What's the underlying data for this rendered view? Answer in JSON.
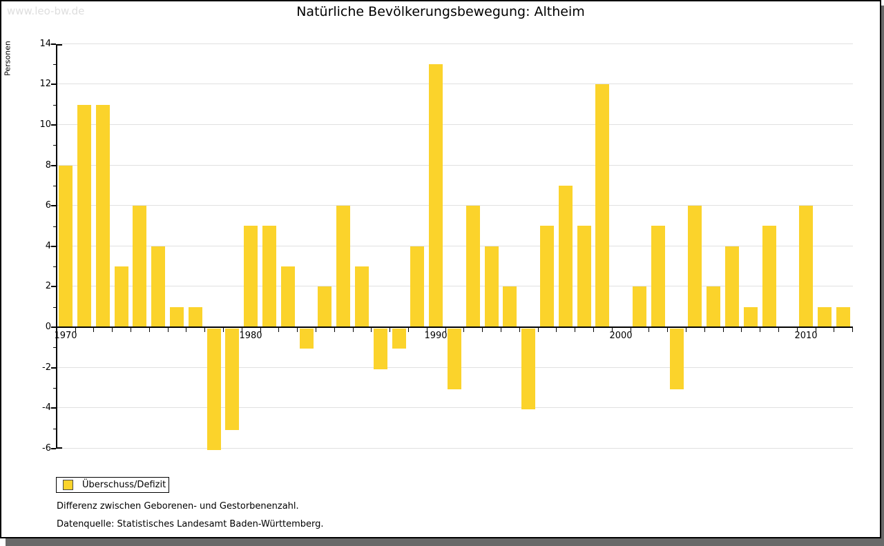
{
  "window": {
    "watermark": "www.leo-bw.de"
  },
  "header": {
    "title": "Natürliche Bevölkerungsbewegung: Altheim"
  },
  "legend": {
    "label": "Überschuss/Defizit"
  },
  "footnotes": {
    "description": "Differenz zwischen Geborenen- und Gestorbenenzahl.",
    "source": "Datenquelle: Statistisches Landesamt Baden-Württemberg."
  },
  "colors": {
    "bar": "#fbd32b",
    "grid": "#e0e0e0",
    "axis": "#000000",
    "watermark": "#dedede",
    "shadow": "#696969"
  },
  "chart_data": {
    "type": "bar",
    "title": "Natürliche Bevölkerungsbewegung: Altheim",
    "xlabel": "",
    "ylabel": "Personen",
    "ylim": [
      -6,
      14
    ],
    "ytick_interval": 2,
    "grid": true,
    "legend_position": "bottom-left",
    "x_axis_tick_labels": [
      "1970",
      "1980",
      "1990",
      "2000",
      "2010"
    ],
    "series": [
      {
        "name": "Überschuss/Defizit",
        "x": [
          1970,
          1971,
          1972,
          1973,
          1974,
          1975,
          1976,
          1977,
          1978,
          1979,
          1980,
          1981,
          1982,
          1983,
          1984,
          1985,
          1986,
          1987,
          1988,
          1989,
          1990,
          1991,
          1992,
          1993,
          1994,
          1995,
          1996,
          1997,
          1998,
          1999,
          2000,
          2001,
          2002,
          2003,
          2004,
          2005,
          2006,
          2007,
          2008,
          2009,
          2010,
          2011,
          2012
        ],
        "values": [
          8,
          11,
          11,
          3,
          6,
          4,
          1,
          1,
          -6,
          -5,
          5,
          5,
          3,
          -1,
          2,
          6,
          3,
          -2,
          -1,
          4,
          13,
          -3,
          6,
          4,
          2,
          -4,
          5,
          7,
          5,
          12,
          0,
          2,
          5,
          -3,
          6,
          2,
          4,
          1,
          5,
          0,
          6,
          1,
          1
        ]
      }
    ]
  }
}
